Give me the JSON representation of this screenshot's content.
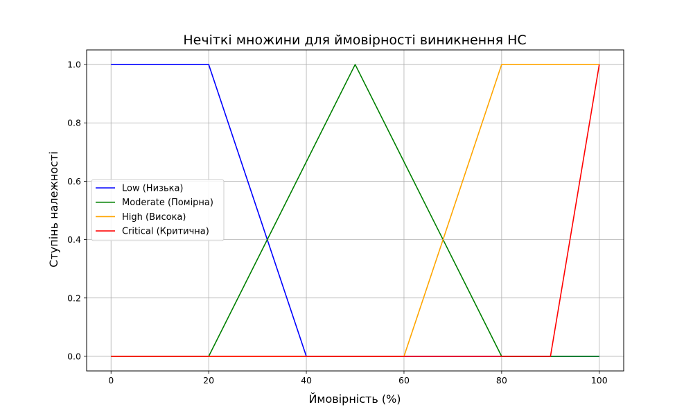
{
  "chart_data": {
    "type": "line",
    "title": "Нечіткі множини для ймовірності виникнення НС",
    "xlabel": "Ймовірність (%)",
    "ylabel": "Ступінь належності",
    "xlim": [
      -5,
      105
    ],
    "ylim": [
      -0.05,
      1.05
    ],
    "xticks": [
      0,
      20,
      40,
      60,
      80,
      100
    ],
    "yticks": [
      0.0,
      0.2,
      0.4,
      0.6,
      0.8,
      1.0
    ],
    "xtick_labels": [
      "0",
      "20",
      "40",
      "60",
      "80",
      "100"
    ],
    "ytick_labels": [
      "0.0",
      "0.2",
      "0.4",
      "0.6",
      "0.8",
      "1.0"
    ],
    "grid": true,
    "legend_position": "center-left",
    "series": [
      {
        "name": "Low (Низька)",
        "color": "#0000ff",
        "x": [
          0,
          20,
          40,
          100
        ],
        "y": [
          1,
          1,
          0,
          0
        ]
      },
      {
        "name": "Moderate (Помірна)",
        "color": "#008000",
        "x": [
          0,
          20,
          50,
          80,
          100
        ],
        "y": [
          0,
          0,
          1,
          0,
          0
        ]
      },
      {
        "name": "High (Висока)",
        "color": "#ffa500",
        "x": [
          0,
          60,
          80,
          100
        ],
        "y": [
          0,
          0,
          1,
          1
        ]
      },
      {
        "name": "Critical (Критична)",
        "color": "#ff0000",
        "x": [
          0,
          90,
          100
        ],
        "y": [
          0,
          0,
          1
        ]
      }
    ]
  }
}
